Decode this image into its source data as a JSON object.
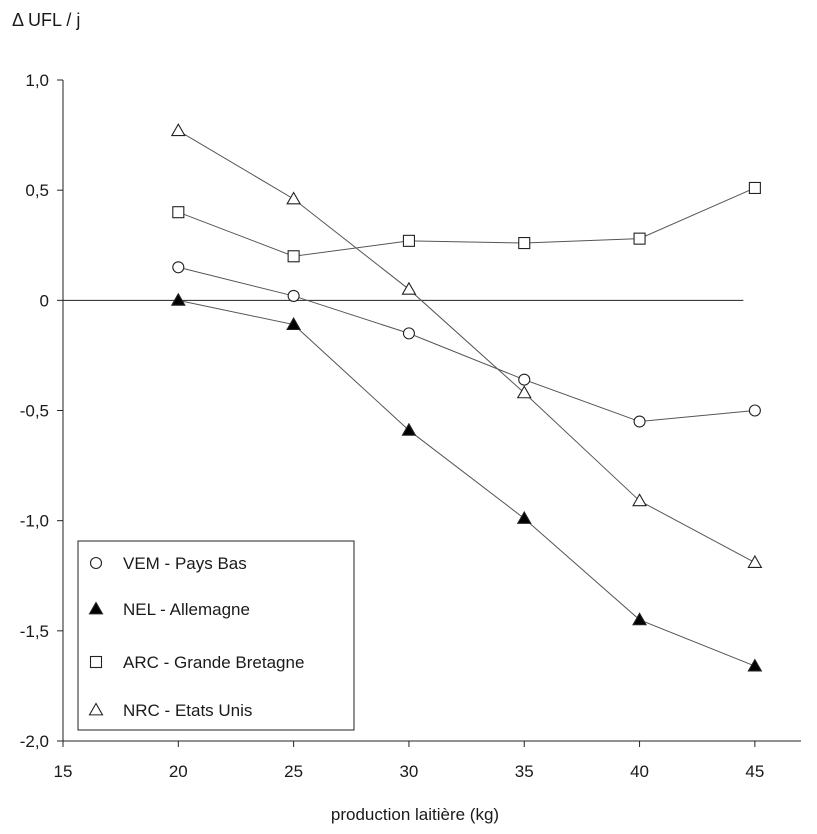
{
  "chart_data": {
    "type": "line",
    "title": "",
    "ylabel": "Δ UFL / j",
    "xlabel": "production laitière (kg)",
    "xlim": [
      15,
      47
    ],
    "ylim": [
      -2.0,
      1.0
    ],
    "x_ticks": [
      15,
      20,
      25,
      30,
      35,
      40,
      45
    ],
    "x_tick_labels": [
      "15",
      "20",
      "25",
      "30",
      "35",
      "40",
      "45"
    ],
    "y_ticks": [
      1.0,
      0.5,
      0,
      -0.5,
      -1.0,
      -1.5,
      -2.0
    ],
    "y_tick_labels": [
      "1,0",
      "0,5",
      "0",
      "-0,5",
      "-1,0",
      "-1,5",
      "-2,0"
    ],
    "grid": false,
    "zero_line": true,
    "legend_position": "bottom-left",
    "x": [
      20,
      25,
      30,
      35,
      40,
      45
    ],
    "series": [
      {
        "name": "VEM - Pays Bas",
        "marker": "circle-open",
        "values": [
          0.15,
          0.02,
          -0.15,
          -0.36,
          -0.55,
          -0.5
        ]
      },
      {
        "name": "NEL - Allemagne",
        "marker": "triangle-filled",
        "values": [
          0.0,
          -0.11,
          -0.59,
          -0.99,
          -1.45,
          -1.66
        ]
      },
      {
        "name": "ARC - Grande Bretagne",
        "marker": "square-open",
        "values": [
          0.4,
          0.2,
          0.27,
          0.26,
          0.28,
          0.51
        ]
      },
      {
        "name": "NRC - Etats Unis",
        "marker": "triangle-open",
        "values": [
          0.77,
          0.46,
          0.05,
          -0.42,
          -0.91,
          -1.19
        ]
      }
    ],
    "colors": {
      "line": "#555555",
      "axis": "#222222",
      "marker": "#222222"
    }
  }
}
